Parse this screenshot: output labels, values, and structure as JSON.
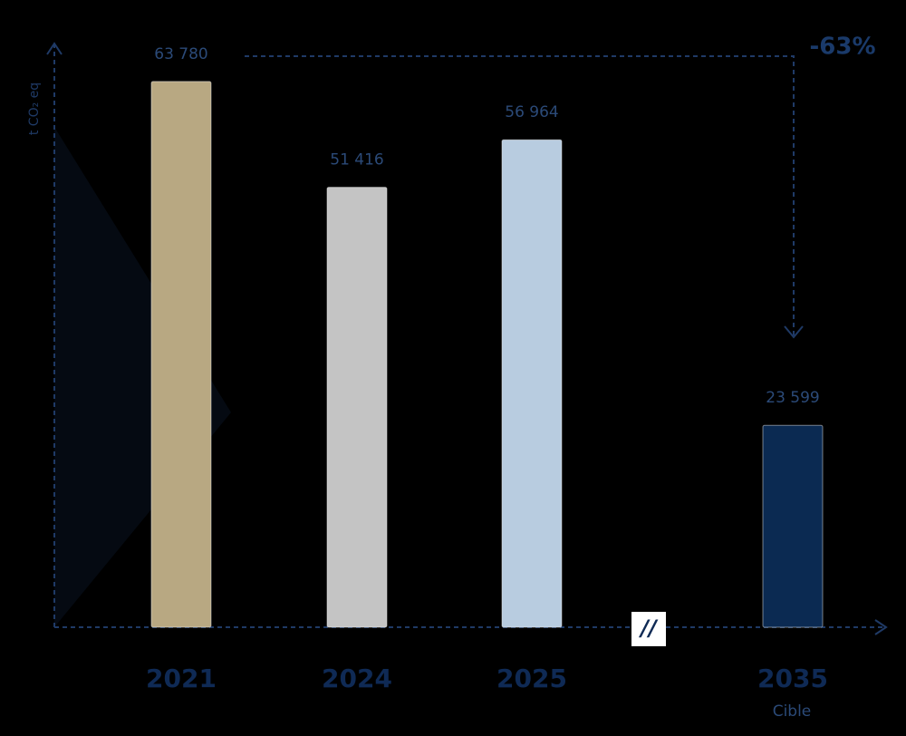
{
  "chart_data": {
    "type": "bar",
    "y_label": "t CO₂ eq",
    "categories": [
      "2021",
      "2024",
      "2025",
      "2035"
    ],
    "values": [
      63780,
      51416,
      56964,
      23599
    ],
    "value_labels": [
      "63 780",
      "51 416",
      "56 964",
      "23 599"
    ],
    "colors": [
      "#b8a882",
      "#c4c4c4",
      "#b8cce0",
      "#0b2a52"
    ],
    "category_notes": [
      null,
      null,
      null,
      "Cible"
    ],
    "change_label": "-63%",
    "ylim": [
      0,
      68000
    ]
  }
}
